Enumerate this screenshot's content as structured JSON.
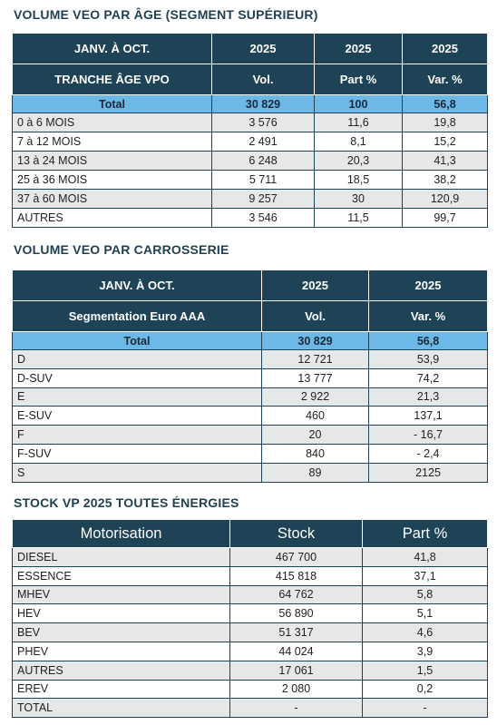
{
  "sections": [
    {
      "title": "VOLUME VEO PAR ÂGE (SEGMENT SUPÉRIEUR)",
      "header_rows": [
        [
          "JANV. À OCT.",
          "2025",
          "2025",
          "2025"
        ],
        [
          "TRANCHE ÂGE VPO",
          "Vol.",
          "Part %",
          "Var. %"
        ]
      ],
      "total": [
        "Total",
        "30 829",
        "100",
        "56,8"
      ],
      "rows": [
        [
          "0 à 6 MOIS",
          "3 576",
          "11,6",
          "19,8"
        ],
        [
          "7 à 12 MOIS",
          "2 491",
          "8,1",
          "15,2"
        ],
        [
          "13 à 24 MOIS",
          "6 248",
          "20,3",
          "41,3"
        ],
        [
          "25 à 36 MOIS",
          "5 711",
          "18,5",
          "38,2"
        ],
        [
          "37 à 60 MOIS",
          "9 257",
          "30",
          "120,9"
        ],
        [
          "AUTRES",
          "3 546",
          "11,5",
          "99,7"
        ]
      ]
    },
    {
      "title": "VOLUME VEO PAR CARROSSERIE",
      "header_rows": [
        [
          "JANV. À OCT.",
          "2025",
          "2025"
        ],
        [
          "Segmentation Euro AAA",
          "Vol.",
          "Var. %"
        ]
      ],
      "total": [
        "Total",
        "30 829",
        "56,8"
      ],
      "rows": [
        [
          "D",
          "12 721",
          "53,9"
        ],
        [
          "D-SUV",
          "13 777",
          "74,2"
        ],
        [
          "E",
          "2 922",
          "21,3"
        ],
        [
          "E-SUV",
          "460",
          "137,1"
        ],
        [
          "F",
          "20",
          "- 16,7"
        ],
        [
          "F-SUV",
          "840",
          "- 2,4"
        ],
        [
          "S",
          "89",
          "2125"
        ]
      ]
    },
    {
      "title": "STOCK VP 2025 TOUTES ÉNERGIES",
      "header_rows": [
        [
          "Motorisation",
          "Stock",
          "Part %"
        ]
      ],
      "rows": [
        [
          "DIESEL",
          "467 700",
          "41,8"
        ],
        [
          "ESSENCE",
          "415 818",
          "37,1"
        ],
        [
          "MHEV",
          "64 762",
          "5,8"
        ],
        [
          "HEV",
          "56 890",
          "5,1"
        ],
        [
          "BEV",
          "51 317",
          "4,6"
        ],
        [
          "PHEV",
          "44 024",
          "3,9"
        ],
        [
          "AUTRES",
          "17 061",
          "1,5"
        ],
        [
          "EREV",
          "2 080",
          "0,2"
        ],
        [
          "TOTAL",
          "-",
          "-"
        ]
      ]
    }
  ]
}
